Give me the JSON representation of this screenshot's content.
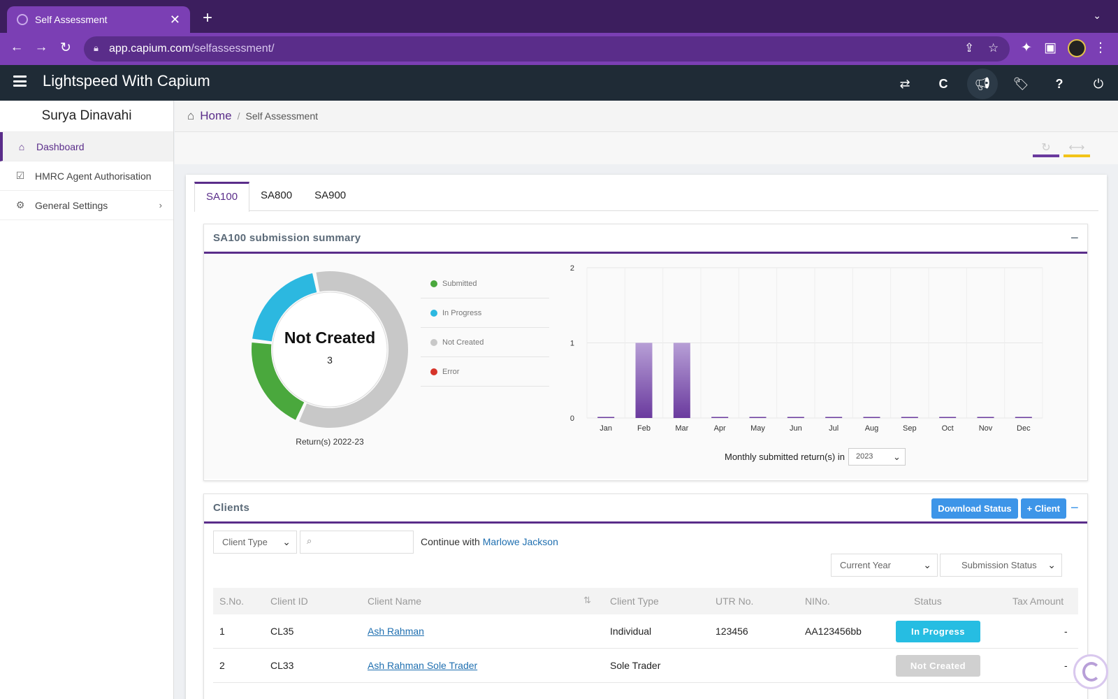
{
  "browser": {
    "tab_title": "Self Assessment",
    "url_host": "app.capium.com",
    "url_path": "/selfassessment/"
  },
  "app": {
    "title": "Lightspeed With Capium"
  },
  "sidebar": {
    "user_name": "Surya Dinavahi",
    "items": [
      {
        "label": "Dashboard"
      },
      {
        "label": "HMRC Agent Authorisation"
      },
      {
        "label": "General Settings"
      }
    ]
  },
  "breadcrumb": {
    "home": "Home",
    "current": "Self Assessment"
  },
  "tabs": [
    "SA100",
    "SA800",
    "SA900"
  ],
  "summary": {
    "title": "SA100 submission summary",
    "donut_label": "Not Created",
    "donut_count": "3",
    "donut_caption": "Return(s) 2022-23",
    "legend": [
      {
        "label": "Submitted",
        "color": "#4aa83d"
      },
      {
        "label": "In Progress",
        "color": "#2cb8e0"
      },
      {
        "label": "Not Created",
        "color": "#c8c8c8"
      },
      {
        "label": "Error",
        "color": "#d6342a"
      }
    ],
    "year_label": "Monthly submitted return(s) in",
    "year_value": "2023"
  },
  "chart_data": [
    {
      "type": "pie",
      "title": "Return(s) 2022-23",
      "labels": [
        "Submitted",
        "In Progress",
        "Not Created",
        "Error"
      ],
      "values": [
        1,
        1,
        3,
        0
      ],
      "colors": [
        "#4aa83d",
        "#2cb8e0",
        "#c8c8c8",
        "#d6342a"
      ],
      "center_label": "Not Created",
      "center_value": "3"
    },
    {
      "type": "bar",
      "title": "Monthly submitted return(s) in 2023",
      "categories": [
        "Jan",
        "Feb",
        "Mar",
        "Apr",
        "May",
        "Jun",
        "Jul",
        "Aug",
        "Sep",
        "Oct",
        "Nov",
        "Dec"
      ],
      "values": [
        0,
        1,
        1,
        0,
        0,
        0,
        0,
        0,
        0,
        0,
        0,
        0
      ],
      "yticks": [
        "0",
        "1",
        "2"
      ],
      "ylim": [
        0,
        2
      ],
      "color": "#6a3a9e"
    }
  ],
  "clients": {
    "title": "Clients",
    "download_label": "Download Status",
    "add_label": "+ Client",
    "client_type_placeholder": "Client Type",
    "continue_prefix": "Continue with",
    "continue_name": "Marlowe Jackson",
    "year_filter": "Current Year",
    "status_filter": "Submission Status",
    "columns": [
      "S.No.",
      "Client ID",
      "Client Name",
      "Client Type",
      "UTR No.",
      "NINo.",
      "Status",
      "Tax Amount"
    ],
    "rows": [
      {
        "sno": "1",
        "id": "CL35",
        "name": "Ash Rahman",
        "type": "Individual",
        "utr": "123456",
        "nino": "AA123456bb",
        "status": "In Progress",
        "tax": "-"
      },
      {
        "sno": "2",
        "id": "CL33",
        "name": "Ash Rahman Sole Trader",
        "type": "Sole Trader",
        "utr": "",
        "nino": "",
        "status": "Not Created",
        "tax": "-"
      }
    ]
  }
}
